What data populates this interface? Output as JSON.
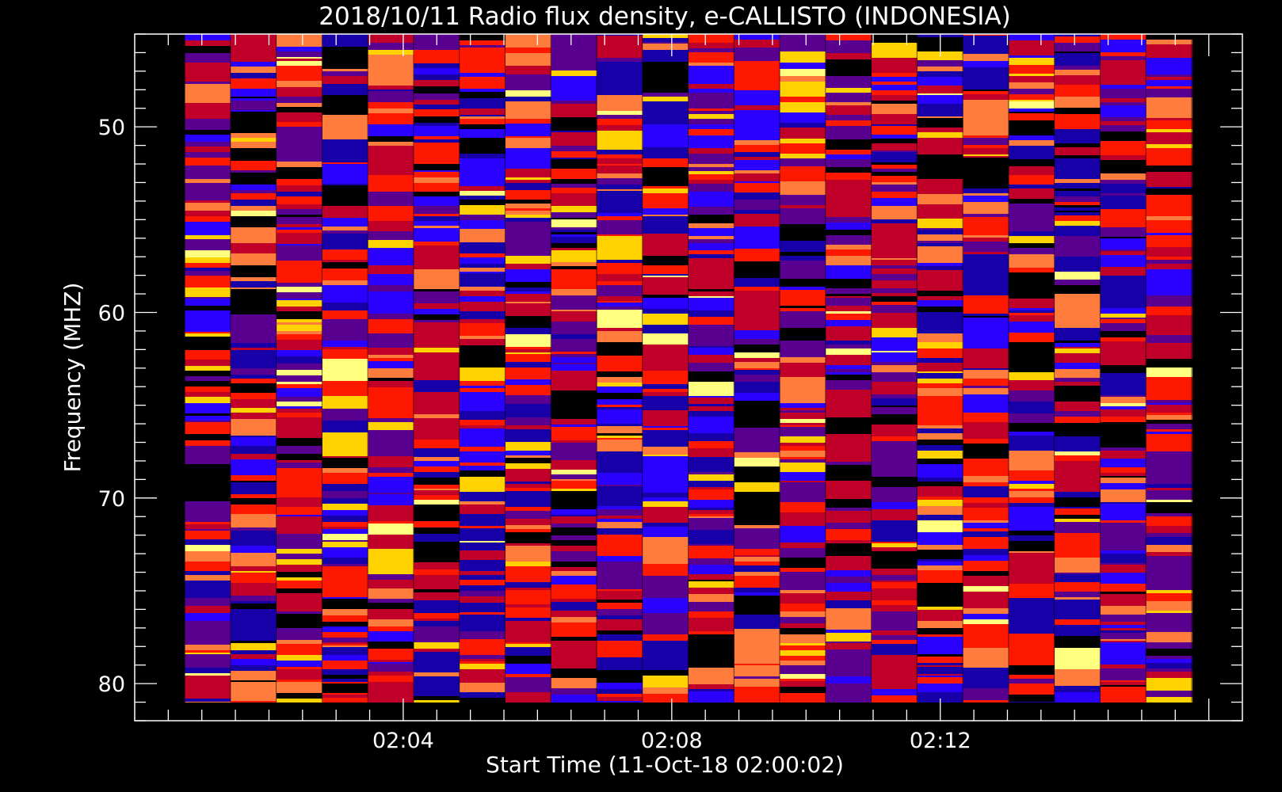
{
  "chart_data": {
    "type": "heatmap",
    "title": "2018/10/11  Radio flux density, e-CALLISTO (INDONESIA)",
    "xlabel": "Start Time (11-Oct-18 02:00:02)",
    "ylabel": "Frequency (MHZ)",
    "x_ticks": [
      "02:04",
      "02:08",
      "02:12"
    ],
    "x_tick_values_min": [
      4,
      8,
      12
    ],
    "y_ticks": [
      "50",
      "60",
      "70",
      "80"
    ],
    "y_tick_values": [
      50,
      60,
      70,
      80
    ],
    "xlim_min": [
      0.0,
      16.5
    ],
    "ylim": [
      45.0,
      82.0
    ],
    "y_inverted": true,
    "data_time_range_min": [
      0.75,
      15.75
    ],
    "data_freq_range": [
      45.0,
      81.0
    ],
    "time_strips": 22,
    "colormap": [
      "#000000",
      "#1800a8",
      "#2a00ff",
      "#5a0090",
      "#c00028",
      "#ff1800",
      "#ff7c3c",
      "#ffd200",
      "#ffff80"
    ],
    "background": "#000000",
    "foreground": "#ffffff"
  }
}
